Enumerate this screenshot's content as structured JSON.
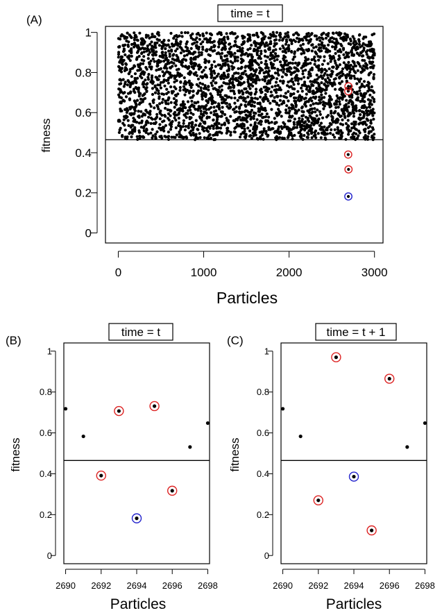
{
  "colors": {
    "point": "#000000",
    "red_ring": "#dd2222",
    "blue_ring": "#2222cc",
    "axis": "#000000"
  },
  "chart_data": [
    {
      "panel": "(A)",
      "type": "scatter",
      "title": "time = t",
      "xlabel": "Particles",
      "ylabel": "fitness",
      "xlim": [
        -150,
        3100
      ],
      "ylim": [
        -0.05,
        1.03
      ],
      "x_ticks": [
        0,
        1000,
        2000,
        3000
      ],
      "y_ticks": [
        0,
        0.2,
        0.4,
        0.6,
        0.8,
        1
      ],
      "threshold": 0.465,
      "background_points": {
        "count": 3000,
        "x_range": [
          0,
          3000
        ],
        "y_range": [
          0.465,
          1
        ]
      },
      "points": [
        {
          "x": 2690,
          "y": 0.718,
          "ring": "none"
        },
        {
          "x": 2691,
          "y": 0.583,
          "ring": "none"
        },
        {
          "x": 2692,
          "y": 0.391,
          "ring": "red"
        },
        {
          "x": 2693,
          "y": 0.707,
          "ring": "red"
        },
        {
          "x": 2694,
          "y": 0.182,
          "ring": "blue"
        },
        {
          "x": 2695,
          "y": 0.731,
          "ring": "red"
        },
        {
          "x": 2696,
          "y": 0.317,
          "ring": "red"
        },
        {
          "x": 2697,
          "y": 0.531,
          "ring": "none"
        },
        {
          "x": 2698,
          "y": 0.648,
          "ring": "none"
        }
      ]
    },
    {
      "panel": "(B)",
      "type": "scatter",
      "title": "time = t",
      "xlabel": "Particles",
      "ylabel": "fitness",
      "xlim": [
        2689.9,
        2698.1
      ],
      "ylim": [
        -0.04,
        1.04
      ],
      "x_ticks": [
        2690,
        2692,
        2694,
        2696,
        2698
      ],
      "y_ticks": [
        0,
        0.2,
        0.4,
        0.6,
        0.8,
        1
      ],
      "threshold": 0.465,
      "points": [
        {
          "x": 2690,
          "y": 0.718,
          "ring": "none"
        },
        {
          "x": 2691,
          "y": 0.583,
          "ring": "none"
        },
        {
          "x": 2692,
          "y": 0.391,
          "ring": "red"
        },
        {
          "x": 2693,
          "y": 0.707,
          "ring": "red"
        },
        {
          "x": 2694,
          "y": 0.182,
          "ring": "blue"
        },
        {
          "x": 2695,
          "y": 0.731,
          "ring": "red"
        },
        {
          "x": 2696,
          "y": 0.317,
          "ring": "red"
        },
        {
          "x": 2697,
          "y": 0.531,
          "ring": "none"
        },
        {
          "x": 2698,
          "y": 0.648,
          "ring": "none"
        }
      ]
    },
    {
      "panel": "(C)",
      "type": "scatter",
      "title": "time = t + 1",
      "xlabel": "Particles",
      "ylabel": "fitness",
      "xlim": [
        2689.9,
        2698.1
      ],
      "ylim": [
        -0.04,
        1.04
      ],
      "x_ticks": [
        2690,
        2692,
        2694,
        2696,
        2698
      ],
      "y_ticks": [
        0,
        0.2,
        0.4,
        0.6,
        0.8,
        1
      ],
      "threshold": 0.465,
      "points": [
        {
          "x": 2690,
          "y": 0.718,
          "ring": "none"
        },
        {
          "x": 2691,
          "y": 0.583,
          "ring": "none"
        },
        {
          "x": 2692,
          "y": 0.27,
          "ring": "red"
        },
        {
          "x": 2693,
          "y": 0.97,
          "ring": "red"
        },
        {
          "x": 2694,
          "y": 0.386,
          "ring": "blue"
        },
        {
          "x": 2695,
          "y": 0.123,
          "ring": "red"
        },
        {
          "x": 2696,
          "y": 0.865,
          "ring": "red"
        },
        {
          "x": 2697,
          "y": 0.531,
          "ring": "none"
        },
        {
          "x": 2698,
          "y": 0.648,
          "ring": "none"
        }
      ]
    }
  ]
}
